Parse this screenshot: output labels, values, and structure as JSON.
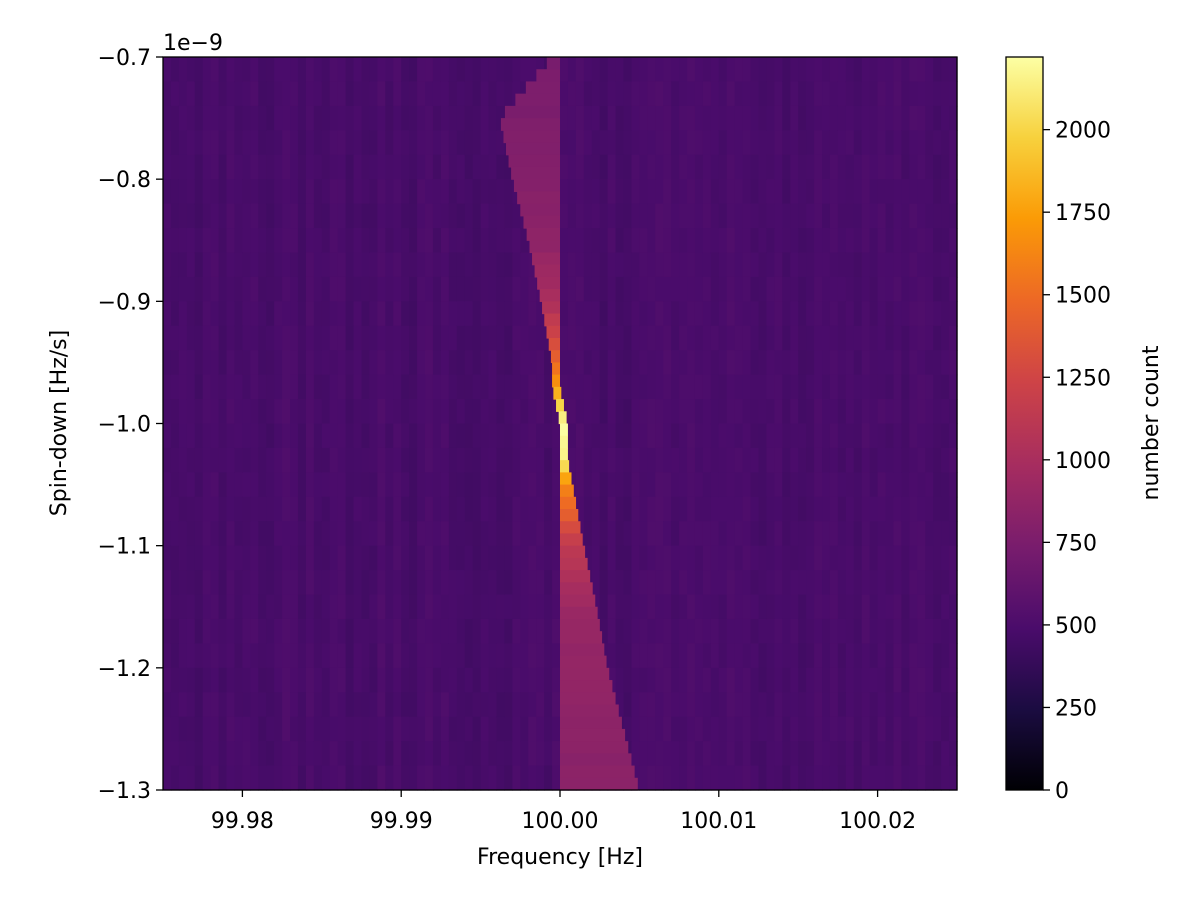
{
  "chart_data": {
    "type": "heatmap",
    "title": "",
    "xlabel": "Frequency [Hz]",
    "ylabel": "Spin-down [Hz/s]",
    "y_offset_label": "1e−9",
    "xlim": [
      99.975,
      100.025
    ],
    "ylim": [
      -1.3,
      -0.7
    ],
    "x_ticks": [
      {
        "value": 99.98,
        "label": "99.98"
      },
      {
        "value": 99.99,
        "label": "99.99"
      },
      {
        "value": 100.0,
        "label": "100.00"
      },
      {
        "value": 100.01,
        "label": "100.01"
      },
      {
        "value": 100.02,
        "label": "100.02"
      }
    ],
    "y_ticks": [
      {
        "value": -0.7,
        "label": "−0.7"
      },
      {
        "value": -0.8,
        "label": "−0.8"
      },
      {
        "value": -0.9,
        "label": "−0.9"
      },
      {
        "value": -1.0,
        "label": "−1.0"
      },
      {
        "value": -1.1,
        "label": "−1.1"
      },
      {
        "value": -1.2,
        "label": "−1.2"
      },
      {
        "value": -1.3,
        "label": "−1.3"
      }
    ],
    "colormap": "inferno",
    "grid": false,
    "colorbar": {
      "label": "number count",
      "range": [
        0,
        2220
      ],
      "ticks": [
        {
          "value": 0,
          "label": "0"
        },
        {
          "value": 250,
          "label": "250"
        },
        {
          "value": 500,
          "label": "500"
        },
        {
          "value": 750,
          "label": "750"
        },
        {
          "value": 1000,
          "label": "1000"
        },
        {
          "value": 1250,
          "label": "1250"
        },
        {
          "value": 1500,
          "label": "1500"
        },
        {
          "value": 1750,
          "label": "1750"
        },
        {
          "value": 2000,
          "label": "2000"
        }
      ]
    },
    "background_count": 480,
    "ridge": [
      {
        "spin_down": -0.7,
        "f_min": 99.9995,
        "f_max": 100.0,
        "count": 740
      },
      {
        "spin_down": -0.75,
        "f_min": 99.9962,
        "f_max": 100.0,
        "count": 760
      },
      {
        "spin_down": -0.8,
        "f_min": 99.997,
        "f_max": 100.0,
        "count": 790
      },
      {
        "spin_down": -0.85,
        "f_min": 99.998,
        "f_max": 100.0,
        "count": 850
      },
      {
        "spin_down": -0.9,
        "f_min": 99.9988,
        "f_max": 100.0,
        "count": 1000
      },
      {
        "spin_down": -0.95,
        "f_min": 99.9995,
        "f_max": 100.0,
        "count": 1450
      },
      {
        "spin_down": -0.97,
        "f_min": 99.9995,
        "f_max": 100.0,
        "count": 1750
      },
      {
        "spin_down": -1.0,
        "f_min": 100.0,
        "f_max": 100.0005,
        "count": 2220
      },
      {
        "spin_down": -1.03,
        "f_min": 100.0,
        "f_max": 100.0005,
        "count": 2150
      },
      {
        "spin_down": -1.05,
        "f_min": 100.0,
        "f_max": 100.0008,
        "count": 1650
      },
      {
        "spin_down": -1.1,
        "f_min": 100.0,
        "f_max": 100.0015,
        "count": 1150
      },
      {
        "spin_down": -1.15,
        "f_min": 100.0,
        "f_max": 100.0023,
        "count": 920
      },
      {
        "spin_down": -1.2,
        "f_min": 100.0,
        "f_max": 100.003,
        "count": 870
      },
      {
        "spin_down": -1.25,
        "f_min": 100.0,
        "f_max": 100.004,
        "count": 840
      },
      {
        "spin_down": -1.3,
        "f_min": 100.0,
        "f_max": 100.005,
        "count": 820
      }
    ]
  }
}
